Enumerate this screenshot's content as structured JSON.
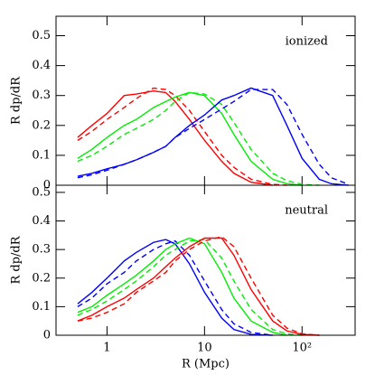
{
  "chart_data": [
    {
      "type": "line",
      "xlog": true,
      "ylabel": "R dp/dR",
      "annotation": "ionized",
      "xlim": [
        0.3,
        350
      ],
      "ylim": [
        0,
        0.565
      ],
      "xticks": [
        1,
        10,
        100
      ],
      "yticks": [
        0,
        0.1,
        0.2,
        0.3,
        0.4,
        0.5
      ],
      "x": [
        0.5,
        0.7,
        1,
        1.5,
        2,
        3,
        4,
        5,
        7,
        10,
        15,
        20,
        30,
        50,
        70,
        100,
        150,
        200,
        300
      ],
      "series": [
        {
          "color": "#ff0000",
          "dashed": false,
          "values": [
            0.16,
            0.2,
            0.24,
            0.3,
            0.305,
            0.315,
            0.31,
            0.28,
            0.22,
            0.15,
            0.08,
            0.04,
            0.01,
            0,
            null,
            null,
            null,
            null,
            null
          ]
        },
        {
          "color": "#ff0000",
          "dashed": true,
          "values": [
            0.15,
            0.18,
            0.22,
            0.26,
            0.29,
            0.325,
            0.32,
            0.3,
            0.25,
            0.18,
            0.1,
            0.06,
            0.02,
            0.003,
            0,
            null,
            null,
            null,
            null
          ]
        },
        {
          "color": "#00ee00",
          "dashed": false,
          "values": [
            0.09,
            0.12,
            0.16,
            0.2,
            0.22,
            0.26,
            0.28,
            0.295,
            0.31,
            0.3,
            0.24,
            0.17,
            0.08,
            0.02,
            0.005,
            0,
            null,
            null,
            null
          ]
        },
        {
          "color": "#00ee00",
          "dashed": true,
          "values": [
            0.08,
            0.1,
            0.13,
            0.17,
            0.19,
            0.22,
            0.25,
            0.28,
            0.31,
            0.305,
            0.27,
            0.21,
            0.12,
            0.04,
            0.015,
            0.003,
            0,
            null,
            null
          ]
        },
        {
          "color": "#0000ff",
          "dashed": false,
          "values": [
            0.03,
            0.04,
            0.055,
            0.07,
            0.085,
            0.11,
            0.13,
            0.16,
            0.2,
            0.235,
            0.285,
            0.3,
            0.325,
            0.3,
            0.2,
            0.09,
            0.02,
            0.005,
            0
          ]
        },
        {
          "color": "#0000ff",
          "dashed": true,
          "values": [
            0.025,
            0.035,
            0.05,
            0.07,
            0.085,
            0.11,
            0.13,
            0.16,
            0.19,
            0.22,
            0.255,
            0.28,
            0.32,
            0.32,
            0.27,
            0.17,
            0.07,
            0.025,
            0.003
          ]
        }
      ]
    },
    {
      "type": "line",
      "xlog": true,
      "ylabel": "R dp/dR",
      "xlabel": "R (Mpc)",
      "annotation": "neutral",
      "xlim": [
        0.3,
        350
      ],
      "ylim": [
        0,
        0.525
      ],
      "xticks": [
        1,
        10,
        {
          "value": 100,
          "label": "10²"
        }
      ],
      "yticks": [
        0,
        0.1,
        0.2,
        0.3,
        0.4,
        0.5
      ],
      "x": [
        0.5,
        0.7,
        1,
        1.5,
        2,
        3,
        4,
        5,
        7,
        10,
        15,
        20,
        30,
        50,
        70,
        100,
        150,
        200,
        300
      ],
      "series": [
        {
          "color": "#0000ff",
          "dashed": false,
          "values": [
            0.11,
            0.15,
            0.2,
            0.26,
            0.29,
            0.325,
            0.335,
            0.32,
            0.25,
            0.15,
            0.06,
            0.02,
            0.003,
            0,
            null,
            null,
            null,
            null,
            null
          ]
        },
        {
          "color": "#0000ff",
          "dashed": true,
          "values": [
            0.1,
            0.13,
            0.18,
            0.22,
            0.26,
            0.3,
            0.32,
            0.33,
            0.28,
            0.19,
            0.09,
            0.04,
            0.01,
            0,
            null,
            null,
            null,
            null,
            null
          ]
        },
        {
          "color": "#00ee00",
          "dashed": false,
          "values": [
            0.08,
            0.1,
            0.14,
            0.18,
            0.21,
            0.26,
            0.3,
            0.32,
            0.34,
            0.32,
            0.22,
            0.13,
            0.05,
            0.01,
            0,
            null,
            null,
            null,
            null
          ]
        },
        {
          "color": "#00ee00",
          "dashed": true,
          "values": [
            0.07,
            0.09,
            0.12,
            0.16,
            0.19,
            0.24,
            0.28,
            0.3,
            0.33,
            0.335,
            0.27,
            0.19,
            0.09,
            0.02,
            0.005,
            0,
            null,
            null,
            null
          ]
        },
        {
          "color": "#ff0000",
          "dashed": false,
          "values": [
            0.05,
            0.07,
            0.1,
            0.13,
            0.16,
            0.2,
            0.24,
            0.27,
            0.31,
            0.34,
            0.34,
            0.28,
            0.16,
            0.05,
            0.015,
            0.003,
            0,
            null,
            null
          ]
        },
        {
          "color": "#ff0000",
          "dashed": true,
          "values": [
            0.05,
            0.06,
            0.08,
            0.11,
            0.15,
            0.19,
            0.22,
            0.26,
            0.3,
            0.33,
            0.345,
            0.31,
            0.2,
            0.07,
            0.025,
            0.005,
            0,
            null,
            null
          ]
        }
      ]
    }
  ]
}
